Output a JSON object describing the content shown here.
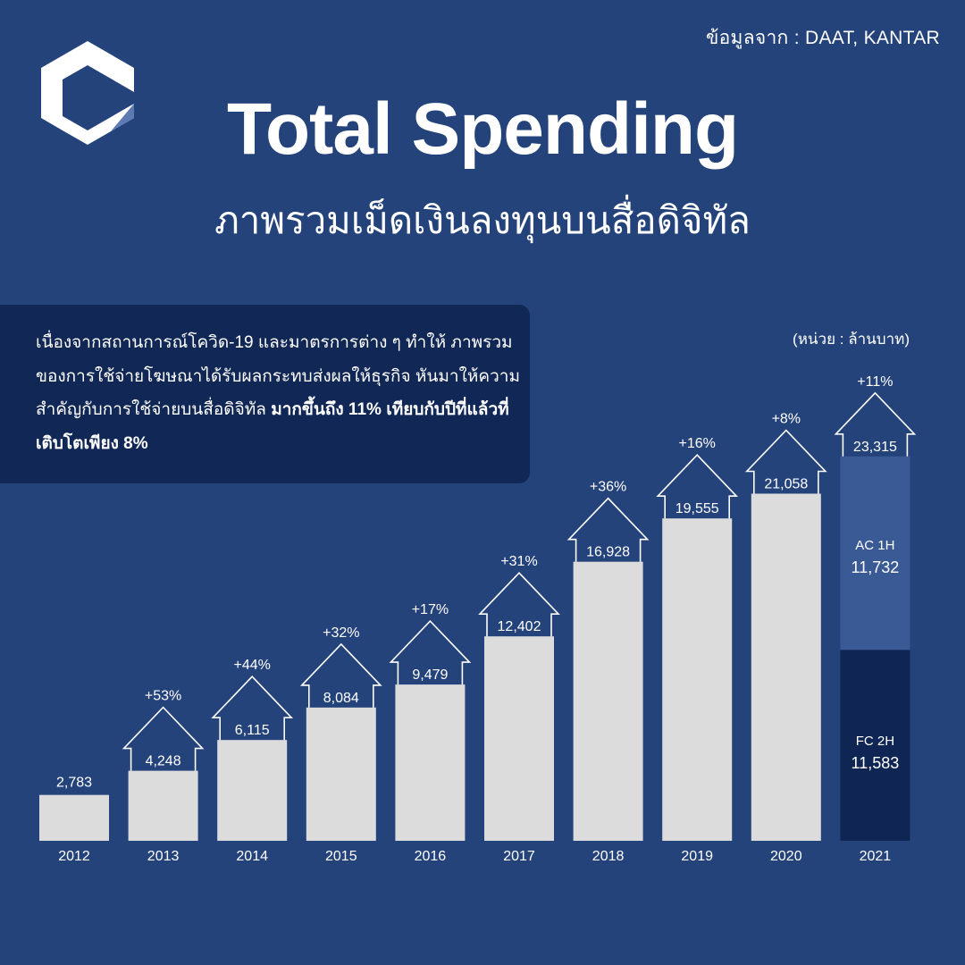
{
  "header": {
    "source": "ข้อมูลจาก : DAAT, KANTAR",
    "title": "Total Spending",
    "subtitle": "ภาพรวมเม็ดเงินลงทุนบนสื่อดิจิทัล"
  },
  "note": {
    "text_plain": "เนื่องจากสถานการณ์โควิด-19 และมาตรการต่าง ๆ ทำให้ ภาพรวมของการใช้จ่ายโฆษณาได้รับผลกระทบส่งผลให้ธุรกิจ หันมาให้ความสำคัญกับการใช้จ่ายบนสื่อดิจิทัล ",
    "text_bold": "มากขึ้นถึง 11% เทียบกับปีที่แล้วที่เติบโตเพียง 8%"
  },
  "unit": "(หน่วย : ล้านบาท)",
  "colors": {
    "background": "#25437b",
    "bar": "#dcdcdc",
    "box": "#112756",
    "ac": "#3a5a96",
    "fc": "#0f2553"
  },
  "chart_data": {
    "type": "bar",
    "categories": [
      "2012",
      "2013",
      "2014",
      "2015",
      "2016",
      "2017",
      "2018",
      "2019",
      "2020",
      "2021"
    ],
    "values": [
      2783,
      4248,
      6115,
      8084,
      9479,
      12402,
      16928,
      19555,
      21058,
      23315
    ],
    "value_labels": [
      "2,783",
      "4,248",
      "6,115",
      "8,084",
      "9,479",
      "12,402",
      "16,928",
      "19,555",
      "21,058",
      "23,315"
    ],
    "growth_labels": [
      "",
      "+53%",
      "+44%",
      "+32%",
      "+17%",
      "+31%",
      "+36%",
      "+16%",
      "+8%",
      "+11%"
    ],
    "stack_2021": [
      {
        "name": "AC 1H",
        "value": 11732,
        "label": "11,732"
      },
      {
        "name": "FC 2H",
        "value": 11583,
        "label": "11,583"
      }
    ]
  }
}
